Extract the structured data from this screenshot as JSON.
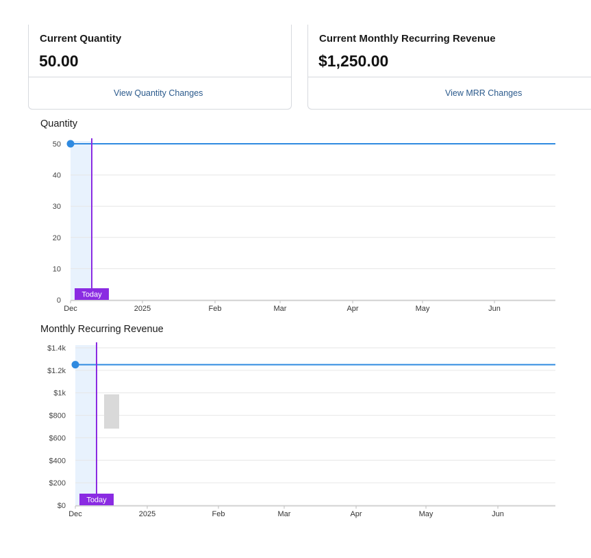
{
  "cards": {
    "quantity": {
      "label": "Current Quantity",
      "value": "50.00",
      "link": "View Quantity Changes"
    },
    "mrr": {
      "label": "Current Monthly Recurring Revenue",
      "value": "$1,250.00",
      "link": "View MRR Changes"
    }
  },
  "colors": {
    "series_line": "#2f8ae0",
    "today_marker": "#8a2be2",
    "highlight_band": "#e8f2fd",
    "gridline": "#e6e6e6"
  },
  "chart_data": [
    {
      "type": "line",
      "title": "Quantity",
      "x_ticks": [
        "Dec",
        "2025",
        "Feb",
        "Mar",
        "Apr",
        "May",
        "Jun"
      ],
      "y_ticks": [
        "0",
        "10",
        "20",
        "30",
        "40",
        "50"
      ],
      "ylim": [
        0,
        50
      ],
      "series": [
        {
          "x_start": "Dec",
          "values": [
            50,
            50
          ]
        }
      ],
      "annotation": "Today",
      "grid": true
    },
    {
      "type": "line",
      "title": "Monthly Recurring Revenue",
      "x_ticks": [
        "Dec",
        "2025",
        "Feb",
        "Mar",
        "Apr",
        "May",
        "Jun"
      ],
      "y_ticks": [
        "$0",
        "$200",
        "$400",
        "$600",
        "$800",
        "$1k",
        "$1.2k",
        "$1.4k"
      ],
      "ylim": [
        0,
        1400
      ],
      "series": [
        {
          "x_start": "Dec",
          "values": [
            1250,
            1250
          ]
        }
      ],
      "annotation": "Today",
      "grid": true
    }
  ]
}
